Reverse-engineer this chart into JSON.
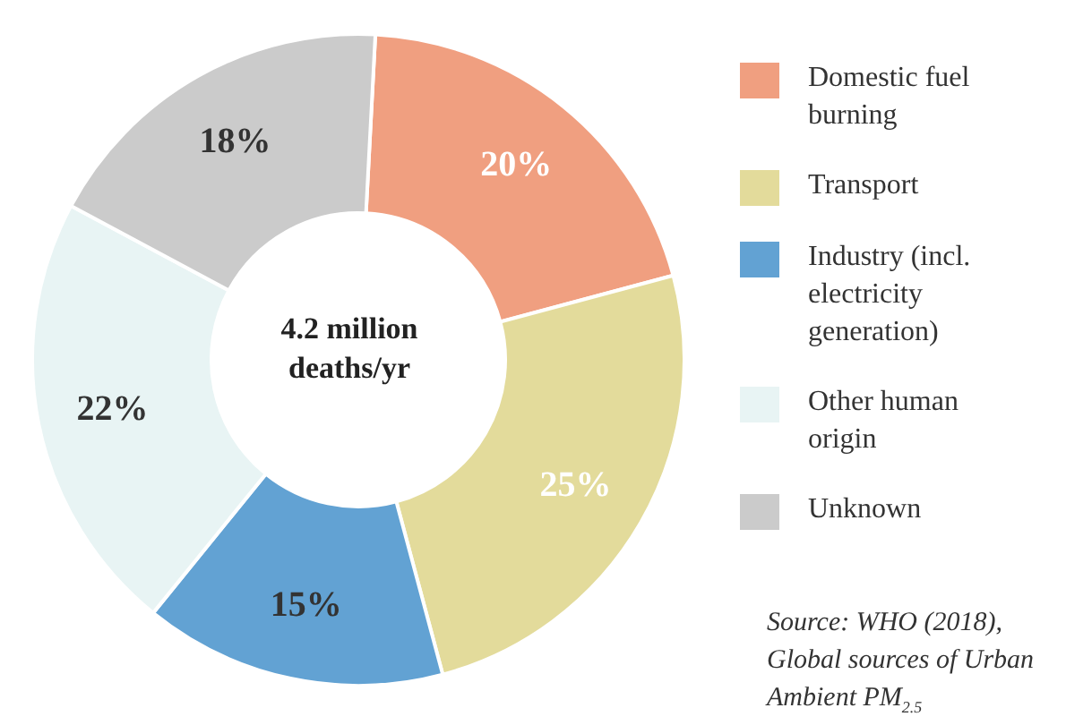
{
  "chart_data": {
    "type": "donut",
    "categories": [
      "Domestic fuel burning",
      "Transport",
      "Industry (incl. electricity generation)",
      "Other human origin",
      "Unknown"
    ],
    "values": [
      20,
      25,
      15,
      22,
      18
    ],
    "colors": [
      "#f09f80",
      "#e3db9b",
      "#62a2d3",
      "#e8f4f4",
      "#cbcbcb"
    ],
    "value_labels": [
      "20%",
      "25%",
      "15%",
      "22%",
      "18%"
    ],
    "legend": "right",
    "annotations": [
      "4.2 million deaths/yr",
      "Source: WHO (2018), Global sources of Urban Ambient PM$_{2.5}$"
    ]
  }
}
